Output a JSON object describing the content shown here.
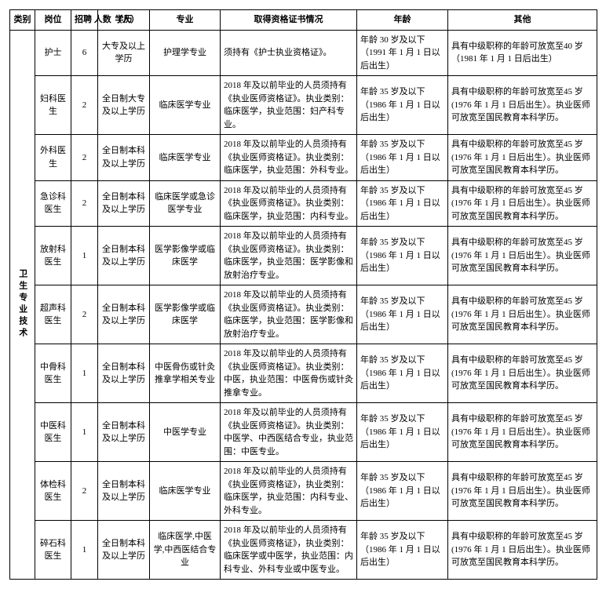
{
  "headers": {
    "category": "类别",
    "position": "岗位",
    "count": "招聘\n人数\n（人）",
    "education": "学历",
    "major": "专业",
    "cert": "取得资格证书情况",
    "age": "年龄",
    "other": "其他"
  },
  "category_label": "卫生专业技术",
  "rows": [
    {
      "position": "护士",
      "count": "6",
      "education": "大专及以上学历",
      "major": "护理学专业",
      "cert": "须持有《护士执业资格证》。",
      "age": "年龄 30 岁及以下（1991 年 1 月 1 日以后出生）",
      "other": "具有中级职称的年龄可放宽至40 岁（1981 年 1 月 1 日后出生）"
    },
    {
      "position": "妇科医生",
      "count": "2",
      "education": "全日制大专及以上学历",
      "major": "临床医学专业",
      "cert": "2018 年及以前毕业的人员须持有《执业医师资格证》。执业类别：临床医学，执业范围：妇产科专业。",
      "age": "年龄 35 岁及以下（1986 年 1 月 1 日以后出生）",
      "other": "具有中级职称的年龄可放宽至45 岁(1976 年 1 月 1 日后出生）。执业医师可放宽至国民教育本科学历。"
    },
    {
      "position": "外科医生",
      "count": "2",
      "education": "全日制本科及以上学历",
      "major": "临床医学专业",
      "cert": "2018 年及以前毕业的人员须持有《执业医师资格证》。执业类别：临床医学，执业范围：外科专业。",
      "age": "年龄 35 岁及以下（1986 年 1 月 1 日以后出生）",
      "other": "具有中级职称的年龄可放宽至45 岁(1976 年 1 月 1 日后出生）。执业医师可放宽至国民教育本科学历。"
    },
    {
      "position": "急诊科医生",
      "count": "2",
      "education": "全日制本科及以上学历",
      "major": "临床医学或急诊医学专业",
      "cert": "2018 年及以前毕业的人员须持有《执业医师资格证》。执业类别：临床医学，执业范围：内科专业。",
      "age": "年龄 35 岁及以下（1986 年 1 月 1 日以后出生）",
      "other": "具有中级职称的年龄可放宽至45 岁(1976 年 1 月 1 日后出生）。执业医师可放宽至国民教育本科学历。"
    },
    {
      "position": "放射科医生",
      "count": "1",
      "education": "全日制本科及以上学历",
      "major": "医学影像学或临床医学",
      "cert": "2018 年及以前毕业的人员须持有《执业医师资格证》。执业类别：临床医学，执业范围：医学影像和放射治疗专业。",
      "age": "年龄 35 岁及以下（1986 年 1 月 1 日以后出生）",
      "other": "具有中级职称的年龄可放宽至45 岁(1976 年 1 月 1 日后出生）。执业医师可放宽至国民教育本科学历。"
    },
    {
      "position": "超声科医生",
      "count": "2",
      "education": "全日制本科及以上学历",
      "major": "医学影像学或临床医学",
      "cert": "2018 年及以前毕业的人员须持有《执业医师资格证》。执业类别：临床医学，执业范围：医学影像和放射治疗专业。",
      "age": "年龄 35 岁及以下（1986 年 1 月 1 日以后出生）",
      "other": "具有中级职称的年龄可放宽至45 岁(1976 年 1 月 1 日后出生）。执业医师可放宽至国民教育本科学历。"
    },
    {
      "position": "中骨科医生",
      "count": "1",
      "education": "全日制本科及以上学历",
      "major": "中医骨伤或针灸推拿学相关专业",
      "cert": "2018 年及以前毕业的人员须持有《执业医师资格证》。执业类别：中医，执业范围：中医骨伤或针灸推拿专业。",
      "age": "年龄 35 岁及以下（1986 年 1 月 1 日以后出生）",
      "other": "具有中级职称的年龄可放宽至45 岁(1976 年 1 月 1 日后出生）。执业医师可放宽至国民教育本科学历。"
    },
    {
      "position": "中医科医生",
      "count": "1",
      "education": "全日制本科及以上学历",
      "major": "中医学专业",
      "cert": "2018 年及以前毕业的人员须持有《执业医师资格证》。执业类别：中医学、中西医结合专业，执业范围：中医专业。",
      "age": "年龄 35 岁及以下（1986 年 1 月 1 日以后出生）",
      "other": "具有中级职称的年龄可放宽至45 岁(1976 年 1 月 1 日后出生）。执业医师可放宽至国民教育本科学历。"
    },
    {
      "position": "体检科医生",
      "count": "2",
      "education": "全日制本科及以上学历",
      "major": "临床医学专业",
      "cert": "2018 年及以前毕业的人员须持有《执业医师资格证》，执业类别：临床医学，执业范围：内科专业、外科专业。",
      "age": "年龄 35 岁及以下（1986 年 1 月 1 日以后出生）",
      "other": "具有中级职称的年龄可放宽至45 岁(1976 年 1 月 1 日后出生）。执业医师可放宽至国民教育本科学历。"
    },
    {
      "position": "碎石科医生",
      "count": "1",
      "education": "全日制本科及以上学历",
      "major": "临床医学,中医学,中西医结合专业",
      "cert": "2018 年及以前毕业的人员须持有《执业医师资格证》，执业类别：临床医学或中医学，执业范围：内科专业、外科专业或中医专业。",
      "age": "年龄 35 岁及以下（1986 年 1 月 1 日以后出生）",
      "other": "具有中级职称的年龄可放宽至45 岁(1976 年 1 月 1 日后出生）。执业医师可放宽至国民教育本科学历。"
    }
  ]
}
